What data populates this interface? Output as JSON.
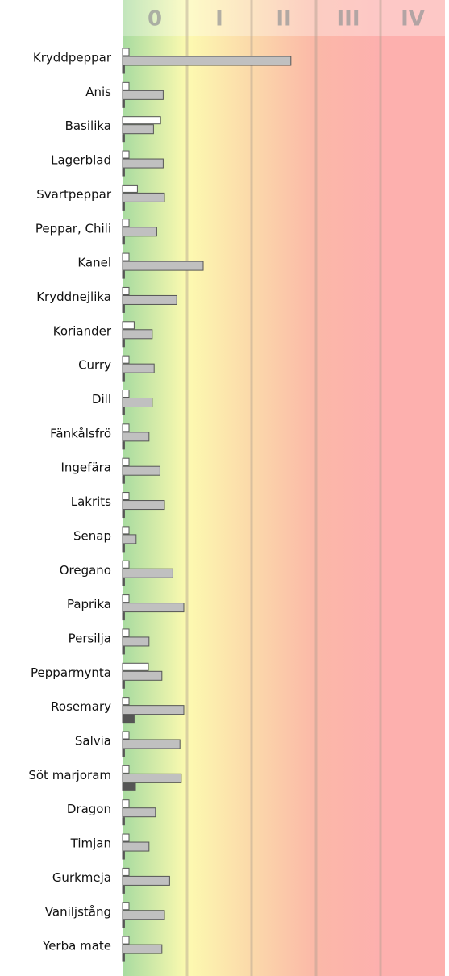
{
  "chart_data": {
    "type": "bar",
    "orientation": "horizontal",
    "categories": [
      "Kryddpeppar",
      "Anis",
      "Basilika",
      "Lagerblad",
      "Svartpeppar",
      "Peppar, Chili",
      "Kanel",
      "Kryddnejlika",
      "Koriander",
      "Curry",
      "Dill",
      "Fänkålsfrö",
      "Ingefära",
      "Lakrits",
      "Senap",
      "Oregano",
      "Paprika",
      "Persilja",
      "Pepparmynta",
      "Rosemary",
      "Salvia",
      "Söt marjoram",
      "Dragon",
      "Timjan",
      "Gurkmeja",
      "Vaniljstång",
      "Yerba mate"
    ],
    "series": [
      {
        "color": "#ffffff",
        "values": [
          0.1,
          0.1,
          0.59,
          0.1,
          0.23,
          0.1,
          0.1,
          0.1,
          0.18,
          0.1,
          0.1,
          0.1,
          0.1,
          0.1,
          0.1,
          0.1,
          0.1,
          0.1,
          0.4,
          0.1,
          0.1,
          0.1,
          0.1,
          0.1,
          0.1,
          0.1,
          0.1
        ]
      },
      {
        "color": "#c0c0c0",
        "values": [
          2.61,
          0.63,
          0.48,
          0.63,
          0.65,
          0.53,
          1.25,
          0.84,
          0.46,
          0.49,
          0.46,
          0.41,
          0.58,
          0.65,
          0.21,
          0.78,
          0.95,
          0.41,
          0.61,
          0.95,
          0.89,
          0.91,
          0.51,
          0.41,
          0.73,
          0.65,
          0.61
        ]
      },
      {
        "color": "#555555",
        "values": [
          0.03,
          0.03,
          0.03,
          0.03,
          0.03,
          0.03,
          0.03,
          0.03,
          0.03,
          0.03,
          0.03,
          0.03,
          0.03,
          0.03,
          0.03,
          0.03,
          0.03,
          0.03,
          0.03,
          0.18,
          0.03,
          0.2,
          0.03,
          0.03,
          0.03,
          0.03,
          0.03
        ]
      }
    ],
    "xlim": [
      0,
      5
    ],
    "xticks": [
      {
        "value": 0.5,
        "label": "0"
      },
      {
        "value": 1.5,
        "label": "I"
      },
      {
        "value": 2.5,
        "label": "II"
      },
      {
        "value": 3.5,
        "label": "III"
      },
      {
        "value": 4.5,
        "label": "IV"
      }
    ],
    "grid": true
  }
}
